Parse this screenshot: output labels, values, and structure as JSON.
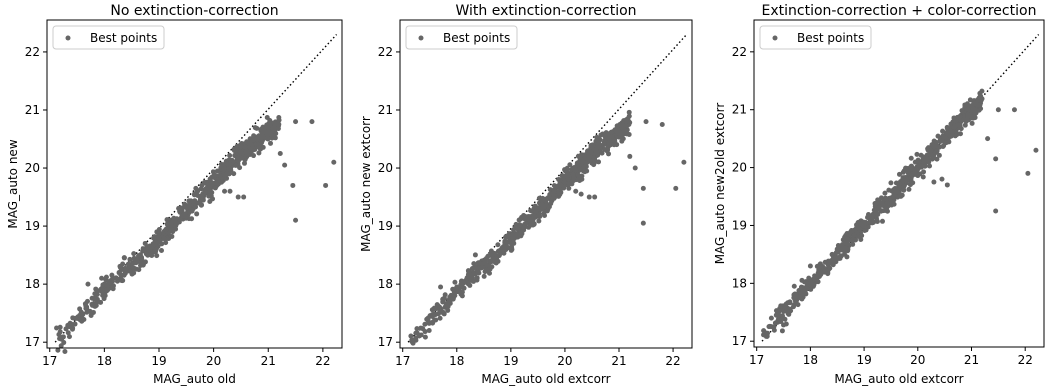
{
  "colors": {
    "points": "#666666",
    "diagonal": "#000000",
    "axes": "#000000"
  },
  "chart_data": [
    {
      "type": "scatter",
      "title": "No extinction-correction",
      "xlabel": "MAG_auto old",
      "ylabel": "MAG_auto new",
      "xlim": [
        16.95,
        22.35
      ],
      "ylim": [
        16.9,
        22.55
      ],
      "xticks": [
        17,
        18,
        19,
        20,
        21,
        22
      ],
      "yticks": [
        17,
        18,
        19,
        20,
        21,
        22
      ],
      "xtick_labels": [
        "17",
        "18",
        "19",
        "20",
        "21",
        "22"
      ],
      "ytick_labels": [
        "17",
        "18",
        "19",
        "20",
        "21",
        "22"
      ],
      "legend": {
        "label": "Best points",
        "position": "top-left"
      },
      "reference_line": {
        "style": "dotted",
        "x": [
          17.1,
          22.25
        ],
        "y": [
          17.0,
          22.3
        ]
      },
      "band_offset": -0.25,
      "series": [
        {
          "name": "Best points",
          "x": [
            21.22,
            21.3,
            21.45,
            21.8,
            22.05,
            22.2,
            21.5,
            21.5,
            20.55,
            20.45,
            20.3,
            20.2,
            18.0,
            17.7
          ],
          "y": [
            20.25,
            20.05,
            19.7,
            20.8,
            19.7,
            20.1,
            19.1,
            20.8,
            19.5,
            19.5,
            19.6,
            19.6,
            18.0,
            18.0
          ]
        }
      ]
    },
    {
      "type": "scatter",
      "title": "With extinction-correction",
      "xlabel": "MAG_auto old extcorr",
      "ylabel": "MAG_auto new extcorr",
      "xlim": [
        16.95,
        22.35
      ],
      "ylim": [
        16.9,
        22.55
      ],
      "xticks": [
        17,
        18,
        19,
        20,
        21,
        22
      ],
      "yticks": [
        17,
        18,
        19,
        20,
        21,
        22
      ],
      "xtick_labels": [
        "17",
        "18",
        "19",
        "20",
        "21",
        "22"
      ],
      "ytick_labels": [
        "17",
        "18",
        "19",
        "20",
        "21",
        "22"
      ],
      "legend": {
        "label": "Best points",
        "position": "top-left"
      },
      "reference_line": {
        "style": "dotted",
        "x": [
          17.1,
          22.25
        ],
        "y": [
          17.0,
          22.3
        ]
      },
      "band_offset": -0.25,
      "series": [
        {
          "name": "Best points",
          "x": [
            21.2,
            21.3,
            21.45,
            21.8,
            22.05,
            22.2,
            21.45,
            21.5,
            20.55,
            20.45,
            20.3,
            20.2,
            18.0,
            17.7
          ],
          "y": [
            20.2,
            20.0,
            19.65,
            20.75,
            19.65,
            20.1,
            19.05,
            20.8,
            19.5,
            19.5,
            19.55,
            19.6,
            17.95,
            17.95
          ]
        }
      ]
    },
    {
      "type": "scatter",
      "title": "Extinction-correction + color-correction",
      "xlabel": "MAG_auto old extcorr",
      "ylabel": "MAG_auto new2old extcorr",
      "xlim": [
        16.95,
        22.35
      ],
      "ylim": [
        16.9,
        22.55
      ],
      "xticks": [
        17,
        18,
        19,
        20,
        21,
        22
      ],
      "yticks": [
        17,
        18,
        19,
        20,
        21,
        22
      ],
      "xtick_labels": [
        "17",
        "18",
        "19",
        "20",
        "21",
        "22"
      ],
      "ytick_labels": [
        "17",
        "18",
        "19",
        "20",
        "21",
        "22"
      ],
      "legend": {
        "label": "Best points",
        "position": "top-left"
      },
      "reference_line": {
        "style": "dotted",
        "x": [
          17.1,
          22.25
        ],
        "y": [
          17.0,
          22.3
        ]
      },
      "band_offset": 0.0,
      "series": [
        {
          "name": "Best points",
          "x": [
            21.3,
            21.45,
            21.8,
            22.05,
            22.2,
            21.45,
            21.5,
            20.55,
            20.45,
            20.3,
            18.0,
            17.7
          ],
          "y": [
            20.5,
            20.15,
            21.0,
            19.9,
            20.3,
            19.25,
            21.0,
            19.7,
            19.8,
            19.75,
            18.3,
            17.95
          ]
        }
      ]
    }
  ]
}
